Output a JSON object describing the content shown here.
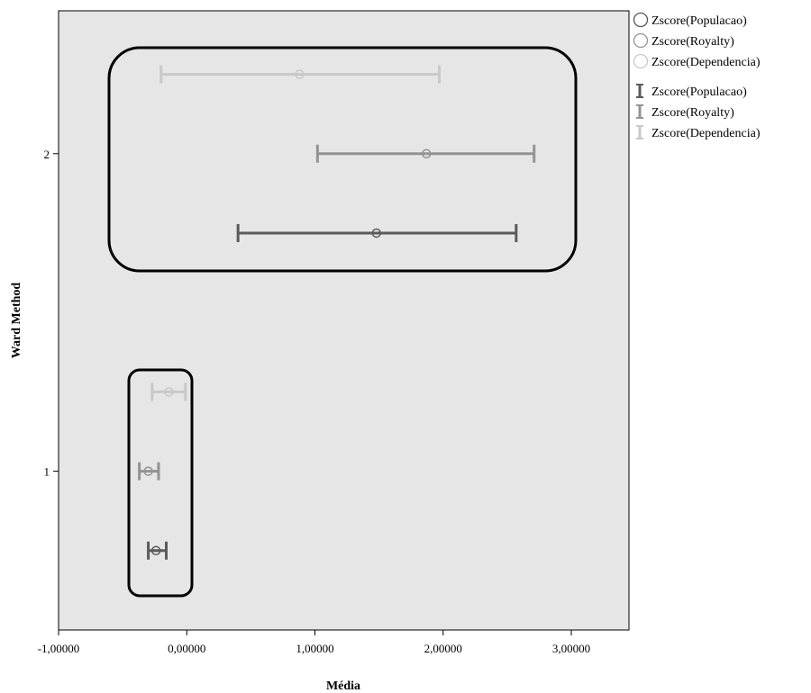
{
  "chart_data": {
    "type": "errorbar",
    "xlabel": "Média",
    "ylabel": "Ward Method",
    "xlim": [
      -1.0,
      3.45
    ],
    "ylim": [
      0.5,
      2.45
    ],
    "x_ticks": [
      -1.0,
      0.0,
      1.0,
      2.0,
      3.0
    ],
    "x_tick_labels": [
      "-1,00000",
      "0,00000",
      "1,00000",
      "2,00000",
      "3,00000"
    ],
    "y_ticks": [
      1,
      2
    ],
    "y_tick_labels": [
      "1",
      "2"
    ],
    "grid": false,
    "background": "#e6e6e6",
    "legend_position": "right",
    "series": [
      {
        "name": "Zscore(Populacao)",
        "color": "#5b5b5b",
        "offset": -0.25,
        "points": [
          {
            "group": 1,
            "mean": -0.24,
            "low": -0.3,
            "high": -0.16
          },
          {
            "group": 2,
            "mean": 1.48,
            "low": 0.4,
            "high": 2.57
          }
        ]
      },
      {
        "name": "Zscore(Royalty)",
        "color": "#939393",
        "offset": 0.0,
        "points": [
          {
            "group": 1,
            "mean": -0.3,
            "low": -0.37,
            "high": -0.22
          },
          {
            "group": 2,
            "mean": 1.87,
            "low": 1.02,
            "high": 2.71
          }
        ]
      },
      {
        "name": "Zscore(Dependencia)",
        "color": "#c8c8c8",
        "offset": 0.25,
        "points": [
          {
            "group": 1,
            "mean": -0.14,
            "low": -0.27,
            "high": -0.01
          },
          {
            "group": 2,
            "mean": 0.88,
            "low": -0.2,
            "high": 1.97
          }
        ]
      }
    ],
    "legend": {
      "mean_entries": [
        "Zscore(Populacao)",
        "Zscore(Royalty)",
        "Zscore(Dependencia)"
      ],
      "interval_entries": [
        "Zscore(Populacao)",
        "Zscore(Royalty)",
        "Zscore(Dependencia)"
      ]
    }
  }
}
